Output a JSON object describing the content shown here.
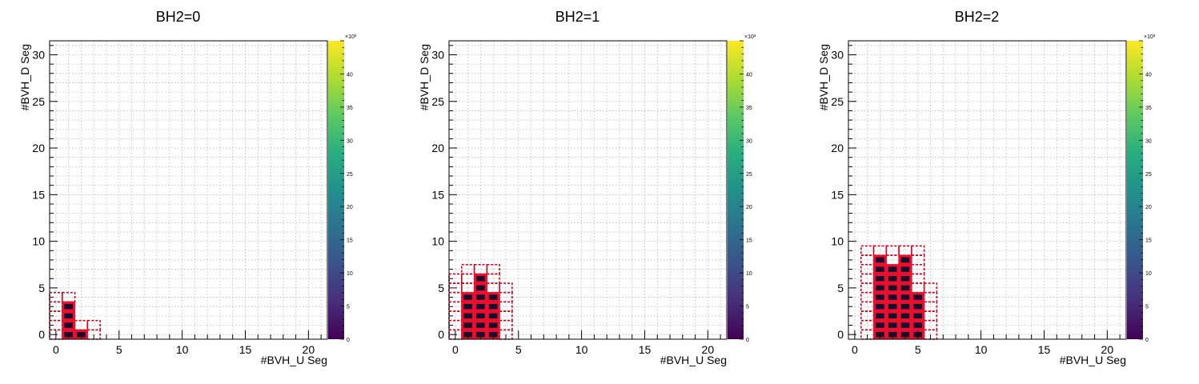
{
  "colors": {
    "frame": "#000000",
    "grid": "#b8b8b8",
    "cell_fill": "#1a0c2e",
    "cell_border": "#e8112d",
    "dashed_outline": "#d0021b",
    "palette": [
      "#440154",
      "#472d7b",
      "#3b528b",
      "#2c728e",
      "#21918c",
      "#28ae80",
      "#5ec962",
      "#addc30",
      "#fde725"
    ]
  },
  "chart_data": [
    {
      "type": "heatmap",
      "title": "BH2=0",
      "xlabel": "#BVH_U Seg",
      "ylabel": "#BVH_D Seg",
      "xlim": [
        -0.5,
        21.5
      ],
      "ylim": [
        -0.5,
        31.5
      ],
      "x_ticks": [
        0,
        5,
        10,
        15,
        20
      ],
      "y_ticks": [
        0,
        5,
        10,
        15,
        20,
        25,
        30
      ],
      "grid": true,
      "colorbar": {
        "min": 0,
        "max": 45,
        "ticks": [
          0,
          5,
          10,
          15,
          20,
          25,
          30,
          35,
          40
        ],
        "exponent_label": "×10³"
      },
      "cells": [
        [
          1,
          0
        ],
        [
          1,
          1
        ],
        [
          1,
          2
        ],
        [
          1,
          3
        ],
        [
          2,
          0
        ]
      ],
      "outline_cells": [
        [
          0,
          0
        ],
        [
          0,
          1
        ],
        [
          0,
          2
        ],
        [
          0,
          3
        ],
        [
          0,
          4
        ],
        [
          1,
          4
        ],
        [
          2,
          1
        ],
        [
          3,
          0
        ],
        [
          3,
          1
        ]
      ]
    },
    {
      "type": "heatmap",
      "title": "BH2=1",
      "xlabel": "#BVH_U Seg",
      "ylabel": "#BVH_D Seg",
      "xlim": [
        -0.5,
        21.5
      ],
      "ylim": [
        -0.5,
        31.5
      ],
      "x_ticks": [
        0,
        5,
        10,
        15,
        20
      ],
      "y_ticks": [
        0,
        5,
        10,
        15,
        20,
        25,
        30
      ],
      "grid": true,
      "colorbar": {
        "min": 0,
        "max": 45,
        "ticks": [
          0,
          5,
          10,
          15,
          20,
          25,
          30,
          35,
          40
        ],
        "exponent_label": "×10³"
      },
      "cells": [
        [
          1,
          0
        ],
        [
          1,
          1
        ],
        [
          1,
          2
        ],
        [
          1,
          3
        ],
        [
          1,
          4
        ],
        [
          2,
          0
        ],
        [
          2,
          1
        ],
        [
          2,
          2
        ],
        [
          2,
          3
        ],
        [
          2,
          4
        ],
        [
          2,
          5
        ],
        [
          2,
          6
        ],
        [
          3,
          0
        ],
        [
          3,
          1
        ],
        [
          3,
          2
        ],
        [
          3,
          3
        ],
        [
          3,
          4
        ]
      ],
      "outline_cells": [
        [
          0,
          0
        ],
        [
          0,
          1
        ],
        [
          0,
          2
        ],
        [
          0,
          3
        ],
        [
          0,
          4
        ],
        [
          0,
          5
        ],
        [
          0,
          6
        ],
        [
          1,
          5
        ],
        [
          1,
          6
        ],
        [
          1,
          7
        ],
        [
          2,
          7
        ],
        [
          3,
          5
        ],
        [
          3,
          6
        ],
        [
          3,
          7
        ],
        [
          4,
          0
        ],
        [
          4,
          1
        ],
        [
          4,
          2
        ],
        [
          4,
          3
        ],
        [
          4,
          4
        ],
        [
          4,
          5
        ]
      ]
    },
    {
      "type": "heatmap",
      "title": "BH2=2",
      "xlabel": "#BVH_U Seg",
      "ylabel": "#BVH_D Seg",
      "xlim": [
        -0.5,
        21.5
      ],
      "ylim": [
        -0.5,
        31.5
      ],
      "x_ticks": [
        0,
        5,
        10,
        15,
        20
      ],
      "y_ticks": [
        0,
        5,
        10,
        15,
        20,
        25,
        30
      ],
      "grid": true,
      "colorbar": {
        "min": 0,
        "max": 45,
        "ticks": [
          0,
          5,
          10,
          15,
          20,
          25,
          30,
          35,
          40
        ],
        "exponent_label": "×10³"
      },
      "cells": [
        [
          2,
          0
        ],
        [
          2,
          1
        ],
        [
          2,
          2
        ],
        [
          2,
          3
        ],
        [
          2,
          4
        ],
        [
          2,
          5
        ],
        [
          2,
          6
        ],
        [
          2,
          7
        ],
        [
          2,
          8
        ],
        [
          3,
          0
        ],
        [
          3,
          1
        ],
        [
          3,
          2
        ],
        [
          3,
          3
        ],
        [
          3,
          4
        ],
        [
          3,
          5
        ],
        [
          3,
          6
        ],
        [
          3,
          7
        ],
        [
          4,
          0
        ],
        [
          4,
          1
        ],
        [
          4,
          2
        ],
        [
          4,
          3
        ],
        [
          4,
          4
        ],
        [
          4,
          5
        ],
        [
          4,
          6
        ],
        [
          4,
          7
        ],
        [
          4,
          8
        ],
        [
          5,
          0
        ],
        [
          5,
          1
        ],
        [
          5,
          2
        ],
        [
          5,
          3
        ],
        [
          5,
          4
        ]
      ],
      "outline_cells": [
        [
          1,
          0
        ],
        [
          1,
          1
        ],
        [
          1,
          2
        ],
        [
          1,
          3
        ],
        [
          1,
          4
        ],
        [
          1,
          5
        ],
        [
          1,
          6
        ],
        [
          1,
          7
        ],
        [
          1,
          8
        ],
        [
          1,
          9
        ],
        [
          2,
          9
        ],
        [
          3,
          8
        ],
        [
          3,
          9
        ],
        [
          4,
          9
        ],
        [
          5,
          5
        ],
        [
          5,
          6
        ],
        [
          5,
          7
        ],
        [
          5,
          8
        ],
        [
          5,
          9
        ],
        [
          6,
          0
        ],
        [
          6,
          1
        ],
        [
          6,
          2
        ],
        [
          6,
          3
        ],
        [
          6,
          4
        ],
        [
          6,
          5
        ]
      ]
    }
  ]
}
